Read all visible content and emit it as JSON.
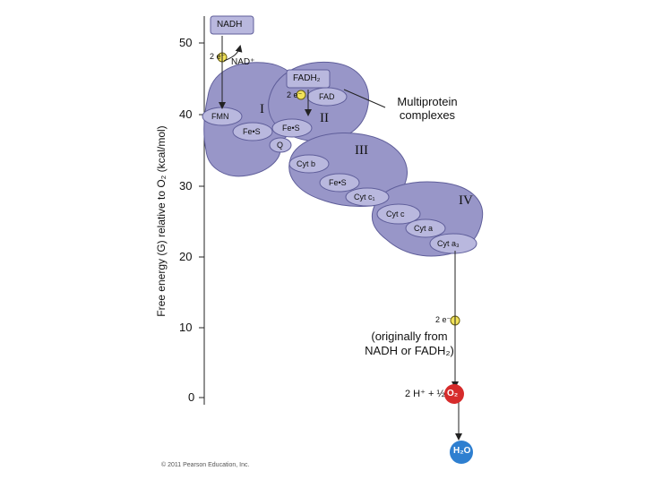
{
  "figure": {
    "y_axis_label": "Free energy (G) relative to O₂ (kcal/mol)",
    "y_ticks": [
      "50",
      "40",
      "30",
      "20",
      "10",
      "0"
    ],
    "copyright": "© 2011 Pearson Education, Inc."
  },
  "molecules": {
    "nadh": "NADH",
    "nad_plus": "NAD⁺",
    "fadh2": "FADH₂",
    "electrons": "2 e⁻",
    "electron_symbol": "e⁻",
    "protons_oxygen": "2 H⁺ + ½",
    "oxygen": "O₂",
    "water": "H₂O"
  },
  "carriers": {
    "fmn": "FMN",
    "fes": "Fe•S",
    "fad": "FAD",
    "q": "Q",
    "cyt_b": "Cyt b",
    "cyt_c1": "Cyt c₁",
    "cyt_c": "Cyt c",
    "cyt_a": "Cyt a",
    "cyt_a3": "Cyt a₃"
  },
  "complexes": {
    "label": "Multiprotein complexes",
    "i": "I",
    "ii": "II",
    "iii": "III",
    "iv": "IV"
  },
  "annotation": "(originally from NADH or FADH₂)",
  "colors": {
    "complex_fill": "#9896c8",
    "complex_dark": "#6b6aa6",
    "carrier_fill": "#b9b8de",
    "electron_yellow": "#f2e35a",
    "oxygen_red": "#d62b2b",
    "water_blue": "#2e7fd0"
  }
}
